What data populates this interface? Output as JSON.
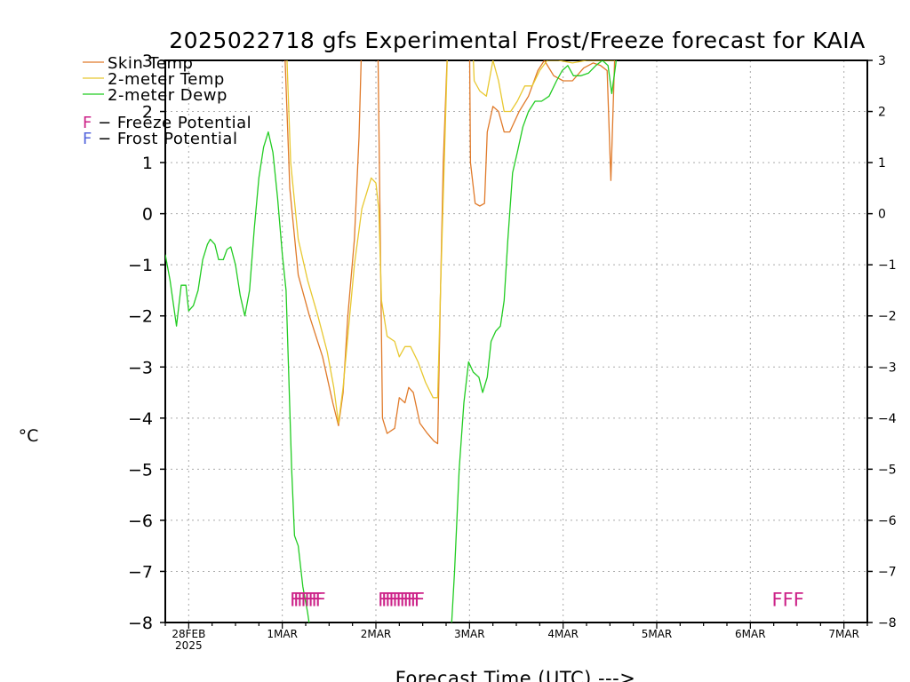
{
  "chart_data": {
    "type": "line",
    "title": "2025022718 gfs Experimental Frost/Freeze forecast for KAIA",
    "xlabel": "Forecast Time (UTC) --->",
    "ylabel": "°C",
    "ylim": [
      -8,
      3
    ],
    "y_ticks": [
      3,
      2,
      1,
      0,
      -1,
      -2,
      -3,
      -4,
      -5,
      -6,
      -7,
      -8
    ],
    "y_tick_labels": [
      "3",
      "2",
      "1",
      "0",
      "−1",
      "−2",
      "−3",
      "−4",
      "−5",
      "−6",
      "−7",
      "−8"
    ],
    "x_start": "2025-02-27 18Z",
    "x_ticks": [
      {
        "day": 0.25,
        "label": "28FEB",
        "sublabel": "2025"
      },
      {
        "day": 1.25,
        "label": "1MAR",
        "sublabel": ""
      },
      {
        "day": 2.25,
        "label": "2MAR",
        "sublabel": ""
      },
      {
        "day": 3.25,
        "label": "3MAR",
        "sublabel": ""
      },
      {
        "day": 4.25,
        "label": "4MAR",
        "sublabel": ""
      },
      {
        "day": 5.25,
        "label": "5MAR",
        "sublabel": ""
      },
      {
        "day": 6.25,
        "label": "6MAR",
        "sublabel": ""
      },
      {
        "day": 7.25,
        "label": "7MAR",
        "sublabel": ""
      }
    ],
    "xlim_days": [
      0,
      7.5
    ],
    "grid": true,
    "legend_position": "top-left",
    "series": [
      {
        "name": "Skin Temp",
        "color": "#e07a2a",
        "points": [
          [
            1.27,
            3.5
          ],
          [
            1.33,
            0.5
          ],
          [
            1.42,
            -1.2
          ],
          [
            1.54,
            -2.0
          ],
          [
            1.68,
            -2.8
          ],
          [
            1.79,
            -3.7
          ],
          [
            1.85,
            -4.15
          ],
          [
            1.9,
            -3.5
          ],
          [
            1.95,
            -2.0
          ],
          [
            2.02,
            -0.5
          ],
          [
            2.07,
            1.5
          ],
          [
            2.1,
            3.5
          ],
          [
            2.27,
            3.5
          ],
          [
            2.3,
            -1.0
          ],
          [
            2.32,
            -4.0
          ],
          [
            2.37,
            -4.3
          ],
          [
            2.45,
            -4.2
          ],
          [
            2.5,
            -3.6
          ],
          [
            2.56,
            -3.7
          ],
          [
            2.6,
            -3.4
          ],
          [
            2.65,
            -3.5
          ],
          [
            2.72,
            -4.1
          ],
          [
            2.8,
            -4.3
          ],
          [
            2.87,
            -4.45
          ],
          [
            2.91,
            -4.5
          ],
          [
            2.94,
            -1.5
          ],
          [
            2.97,
            1.0
          ],
          [
            3.02,
            3.5
          ],
          [
            3.25,
            3.5
          ],
          [
            3.26,
            1.0
          ],
          [
            3.31,
            0.2
          ],
          [
            3.36,
            0.15
          ],
          [
            3.41,
            0.2
          ],
          [
            3.44,
            1.6
          ],
          [
            3.5,
            2.1
          ],
          [
            3.56,
            2.0
          ],
          [
            3.62,
            1.6
          ],
          [
            3.68,
            1.6
          ],
          [
            3.78,
            2.0
          ],
          [
            3.88,
            2.3
          ],
          [
            3.98,
            2.8
          ],
          [
            4.05,
            3.0
          ],
          [
            4.15,
            2.7
          ],
          [
            4.25,
            2.6
          ],
          [
            4.35,
            2.6
          ],
          [
            4.47,
            2.85
          ],
          [
            4.57,
            2.95
          ],
          [
            4.65,
            2.9
          ],
          [
            4.72,
            2.8
          ],
          [
            4.76,
            0.65
          ],
          [
            4.8,
            3.0
          ],
          [
            4.83,
            3.5
          ]
        ]
      },
      {
        "name": "2-meter Temp",
        "color": "#e8c830",
        "points": [
          [
            1.29,
            3.5
          ],
          [
            1.34,
            1.0
          ],
          [
            1.42,
            -0.5
          ],
          [
            1.52,
            -1.3
          ],
          [
            1.63,
            -2.0
          ],
          [
            1.73,
            -2.7
          ],
          [
            1.8,
            -3.4
          ],
          [
            1.85,
            -4.1
          ],
          [
            1.9,
            -3.4
          ],
          [
            1.97,
            -2.0
          ],
          [
            2.02,
            -1.0
          ],
          [
            2.1,
            0.1
          ],
          [
            2.2,
            0.7
          ],
          [
            2.25,
            0.6
          ],
          [
            2.28,
            0.1
          ],
          [
            2.31,
            -1.7
          ],
          [
            2.37,
            -2.4
          ],
          [
            2.45,
            -2.5
          ],
          [
            2.5,
            -2.8
          ],
          [
            2.56,
            -2.6
          ],
          [
            2.62,
            -2.6
          ],
          [
            2.7,
            -2.9
          ],
          [
            2.78,
            -3.3
          ],
          [
            2.86,
            -3.6
          ],
          [
            2.91,
            -3.6
          ],
          [
            2.94,
            -1.5
          ],
          [
            2.98,
            1.0
          ],
          [
            3.02,
            3.5
          ],
          [
            3.28,
            3.5
          ],
          [
            3.3,
            2.6
          ],
          [
            3.36,
            2.4
          ],
          [
            3.43,
            2.3
          ],
          [
            3.5,
            3.0
          ],
          [
            3.56,
            2.6
          ],
          [
            3.62,
            2.0
          ],
          [
            3.69,
            2.0
          ],
          [
            3.76,
            2.2
          ],
          [
            3.84,
            2.5
          ],
          [
            3.92,
            2.5
          ],
          [
            4.0,
            2.8
          ],
          [
            4.08,
            3.0
          ],
          [
            4.2,
            3.0
          ],
          [
            4.35,
            2.95
          ],
          [
            4.5,
            3.0
          ],
          [
            4.7,
            3.0
          ],
          [
            4.8,
            3.0
          ]
        ]
      },
      {
        "name": "2-meter Dewp",
        "color": "#22cc22",
        "points": [
          [
            0.0,
            -0.8
          ],
          [
            0.05,
            -1.3
          ],
          [
            0.12,
            -2.2
          ],
          [
            0.17,
            -1.4
          ],
          [
            0.22,
            -1.4
          ],
          [
            0.25,
            -1.9
          ],
          [
            0.3,
            -1.8
          ],
          [
            0.35,
            -1.5
          ],
          [
            0.4,
            -0.9
          ],
          [
            0.45,
            -0.6
          ],
          [
            0.48,
            -0.5
          ],
          [
            0.53,
            -0.6
          ],
          [
            0.57,
            -0.9
          ],
          [
            0.62,
            -0.9
          ],
          [
            0.66,
            -0.7
          ],
          [
            0.7,
            -0.65
          ],
          [
            0.75,
            -1.0
          ],
          [
            0.8,
            -1.6
          ],
          [
            0.85,
            -2.0
          ],
          [
            0.9,
            -1.5
          ],
          [
            0.95,
            -0.3
          ],
          [
            1.0,
            0.7
          ],
          [
            1.05,
            1.3
          ],
          [
            1.1,
            1.6
          ],
          [
            1.15,
            1.2
          ],
          [
            1.2,
            0.3
          ],
          [
            1.25,
            -0.8
          ],
          [
            1.29,
            -1.5
          ],
          [
            1.32,
            -3.2
          ],
          [
            1.35,
            -5.0
          ],
          [
            1.38,
            -6.3
          ],
          [
            1.42,
            -6.5
          ],
          [
            1.47,
            -7.3
          ],
          [
            1.52,
            -7.8
          ],
          [
            1.56,
            -8.3
          ],
          [
            3.05,
            -8.3
          ],
          [
            3.09,
            -7.0
          ],
          [
            3.14,
            -5.0
          ],
          [
            3.19,
            -3.7
          ],
          [
            3.24,
            -2.9
          ],
          [
            3.29,
            -3.1
          ],
          [
            3.35,
            -3.2
          ],
          [
            3.39,
            -3.5
          ],
          [
            3.44,
            -3.2
          ],
          [
            3.48,
            -2.5
          ],
          [
            3.53,
            -2.3
          ],
          [
            3.58,
            -2.2
          ],
          [
            3.62,
            -1.7
          ],
          [
            3.66,
            -0.5
          ],
          [
            3.71,
            0.8
          ],
          [
            3.76,
            1.2
          ],
          [
            3.82,
            1.7
          ],
          [
            3.88,
            2.0
          ],
          [
            3.95,
            2.2
          ],
          [
            4.02,
            2.2
          ],
          [
            4.1,
            2.3
          ],
          [
            4.18,
            2.6
          ],
          [
            4.24,
            2.8
          ],
          [
            4.3,
            2.9
          ],
          [
            4.36,
            2.7
          ],
          [
            4.44,
            2.7
          ],
          [
            4.52,
            2.75
          ],
          [
            4.6,
            2.9
          ],
          [
            4.67,
            3.0
          ],
          [
            4.73,
            2.9
          ],
          [
            4.77,
            2.35
          ],
          [
            4.81,
            2.9
          ],
          [
            4.85,
            3.5
          ]
        ]
      }
    ],
    "markers": [
      {
        "text": "FFFFFFFF",
        "x_day": 1.33,
        "y": -7.54,
        "color": "#cc2288",
        "squeeze": true
      },
      {
        "text": "FFFFFFFFFFF",
        "x_day": 2.27,
        "y": -7.54,
        "color": "#cc2288",
        "squeeze": true
      },
      {
        "text": "FFF",
        "x_day": 6.48,
        "y": -7.54,
        "color": "#cc2288",
        "squeeze": false
      }
    ],
    "legend": {
      "lines": [
        {
          "label": "Skin Temp",
          "color": "#e07a2a"
        },
        {
          "label": "2-meter Temp",
          "color": "#e8c830"
        },
        {
          "label": "2-meter Dewp",
          "color": "#22cc22"
        }
      ],
      "potentials": [
        {
          "symbol": "F",
          "label": " − Freeze Potential",
          "color": "#cc2288"
        },
        {
          "symbol": "F",
          "label": " − Frost Potential",
          "color": "#5566dd"
        }
      ]
    }
  }
}
